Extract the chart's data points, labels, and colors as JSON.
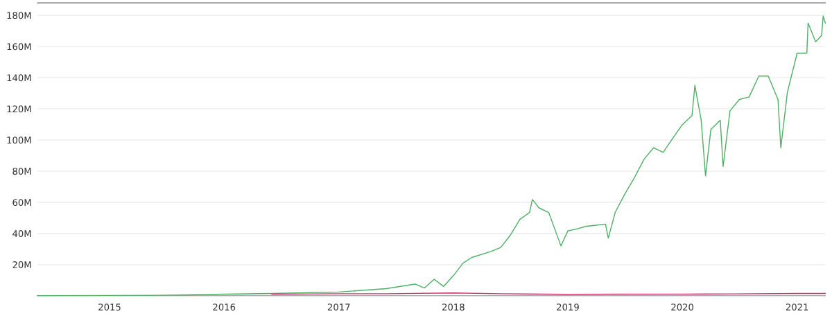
{
  "chart_data": {
    "type": "line",
    "xlim": [
      "2014-05-16",
      "2021-04-01"
    ],
    "xticks": [
      "2015",
      "2016",
      "2017",
      "2018",
      "2019",
      "2020",
      "2021"
    ],
    "ylim": [
      0,
      188
    ],
    "yticks": [
      {
        "value": 20,
        "label": "20M"
      },
      {
        "value": 40,
        "label": "40M"
      },
      {
        "value": 60,
        "label": "60M"
      },
      {
        "value": 80,
        "label": "80M"
      },
      {
        "value": 100,
        "label": "100M"
      },
      {
        "value": 120,
        "label": "120M"
      },
      {
        "value": 140,
        "label": "140M"
      },
      {
        "value": 160,
        "label": "160M"
      },
      {
        "value": 180,
        "label": "180M"
      }
    ],
    "grid": "y",
    "marker": "none",
    "line_style": "solid",
    "series": [
      {
        "color": "#4caf63",
        "x": [
          "2014-05-16",
          "2015-01",
          "2015-06",
          "2016-01",
          "2016-06",
          "2017-01",
          "2017-06",
          "2017-09",
          "2017-10",
          "2017-11",
          "2017-12",
          "2018-01",
          "2018-02",
          "2018-03",
          "2018-05",
          "2018-06",
          "2018-07",
          "2018-08",
          "2018-09",
          "2018-09-10",
          "2018-10",
          "2018-11",
          "2018-12",
          "2018-12-10",
          "2019-01",
          "2019-02",
          "2019-03",
          "2019-04",
          "2019-05",
          "2019-05-10",
          "2019-06",
          "2019-07",
          "2019-08",
          "2019-09",
          "2019-10",
          "2019-11",
          "2019-12",
          "2020-01",
          "2020-02",
          "2020-02-10",
          "2020-03",
          "2020-03-15",
          "2020-04",
          "2020-05",
          "2020-05-10",
          "2020-06",
          "2020-07",
          "2020-08",
          "2020-09",
          "2020-10",
          "2020-11",
          "2020-11-10",
          "2020-12",
          "2021-01",
          "2021-02",
          "2021-02-05",
          "2021-03",
          "2021-03-20",
          "2021-03-25",
          "2021-04-01"
        ],
        "values": [
          0.1,
          0.2,
          0.3,
          1,
          1.5,
          2.4,
          4.6,
          7.5,
          5,
          10.6,
          6,
          12.9,
          21,
          24.6,
          28.4,
          31,
          38.7,
          49,
          53.5,
          61.8,
          56.4,
          53.5,
          37,
          32,
          41.6,
          43,
          44.6,
          45.3,
          46,
          37,
          53.5,
          65,
          75.7,
          87.6,
          95,
          92,
          100.9,
          109.8,
          115.7,
          135,
          112.9,
          77,
          106.8,
          112.7,
          83,
          118.7,
          126,
          127.6,
          141,
          141,
          126,
          95,
          130.6,
          155.7,
          155.7,
          175,
          163,
          167,
          179.5,
          175
        ]
      },
      {
        "color": "#d6336c",
        "x": [
          "2016-06",
          "2017-01",
          "2017-06",
          "2018-01",
          "2018-06",
          "2019-01",
          "2019-06",
          "2020-01",
          "2020-06",
          "2021-01",
          "2021-04-01"
        ],
        "values": [
          1,
          1.3,
          1.3,
          1.8,
          1.3,
          0.9,
          1,
          1.1,
          1.2,
          1.5,
          1.5
        ]
      }
    ]
  }
}
